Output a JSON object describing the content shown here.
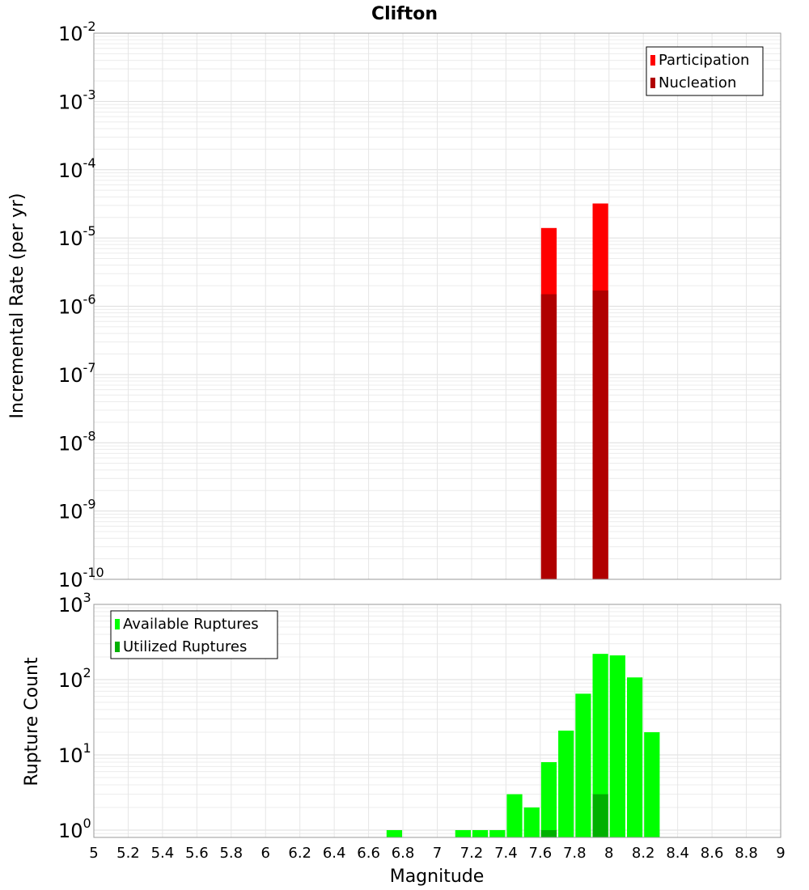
{
  "title": "Clifton",
  "chart_data": [
    {
      "type": "bar",
      "yscale": "log",
      "ylabel": "Incremental Rate (per yr)",
      "xlim": [
        5,
        9
      ],
      "ylim": [
        1e-10,
        0.01
      ],
      "y_exponents": [
        "-2",
        "-3",
        "-4",
        "-5",
        "-6",
        "-7",
        "-8",
        "-9",
        "-10"
      ],
      "y_tick_values": [
        0.01,
        0.001,
        0.0001,
        1e-05,
        1e-06,
        1e-07,
        1e-08,
        1e-09,
        1e-10
      ],
      "legend_position": "top-right",
      "series": [
        {
          "name": "Participation",
          "color": "#ff0000",
          "points": [
            {
              "x": 7.65,
              "y": 1.4e-05
            },
            {
              "x": 7.95,
              "y": 3.2e-05
            }
          ]
        },
        {
          "name": "Nucleation",
          "color": "#b00000",
          "points": [
            {
              "x": 7.65,
              "y": 1.5e-06
            },
            {
              "x": 7.95,
              "y": 1.7e-06
            }
          ]
        }
      ]
    },
    {
      "type": "bar",
      "yscale": "log",
      "ylabel": "Rupture Count",
      "xlabel": "Magnitude",
      "xlim": [
        5,
        9
      ],
      "ylim": [
        0.8,
        1000
      ],
      "y_exponents": [
        "3",
        "2",
        "1",
        "0"
      ],
      "y_tick_values": [
        1000,
        100,
        10,
        1
      ],
      "legend_position": "top-left",
      "x_ticks": [
        "5",
        "5.2",
        "5.4",
        "5.6",
        "5.8",
        "6",
        "6.2",
        "6.4",
        "6.6",
        "6.8",
        "7",
        "7.2",
        "7.4",
        "7.6",
        "7.8",
        "8",
        "8.2",
        "8.4",
        "8.6",
        "8.8",
        "9"
      ],
      "series": [
        {
          "name": "Available Ruptures",
          "color": "#00ff00",
          "points": [
            {
              "x": 6.75,
              "y": 1
            },
            {
              "x": 7.15,
              "y": 1
            },
            {
              "x": 7.25,
              "y": 1
            },
            {
              "x": 7.35,
              "y": 1
            },
            {
              "x": 7.45,
              "y": 3
            },
            {
              "x": 7.55,
              "y": 2
            },
            {
              "x": 7.65,
              "y": 8
            },
            {
              "x": 7.75,
              "y": 21
            },
            {
              "x": 7.85,
              "y": 65
            },
            {
              "x": 7.95,
              "y": 220
            },
            {
              "x": 8.05,
              "y": 210
            },
            {
              "x": 8.15,
              "y": 107
            },
            {
              "x": 8.25,
              "y": 20
            }
          ]
        },
        {
          "name": "Utilized Ruptures",
          "color": "#00b000",
          "points": [
            {
              "x": 7.65,
              "y": 1
            },
            {
              "x": 7.95,
              "y": 3
            }
          ]
        }
      ]
    }
  ]
}
